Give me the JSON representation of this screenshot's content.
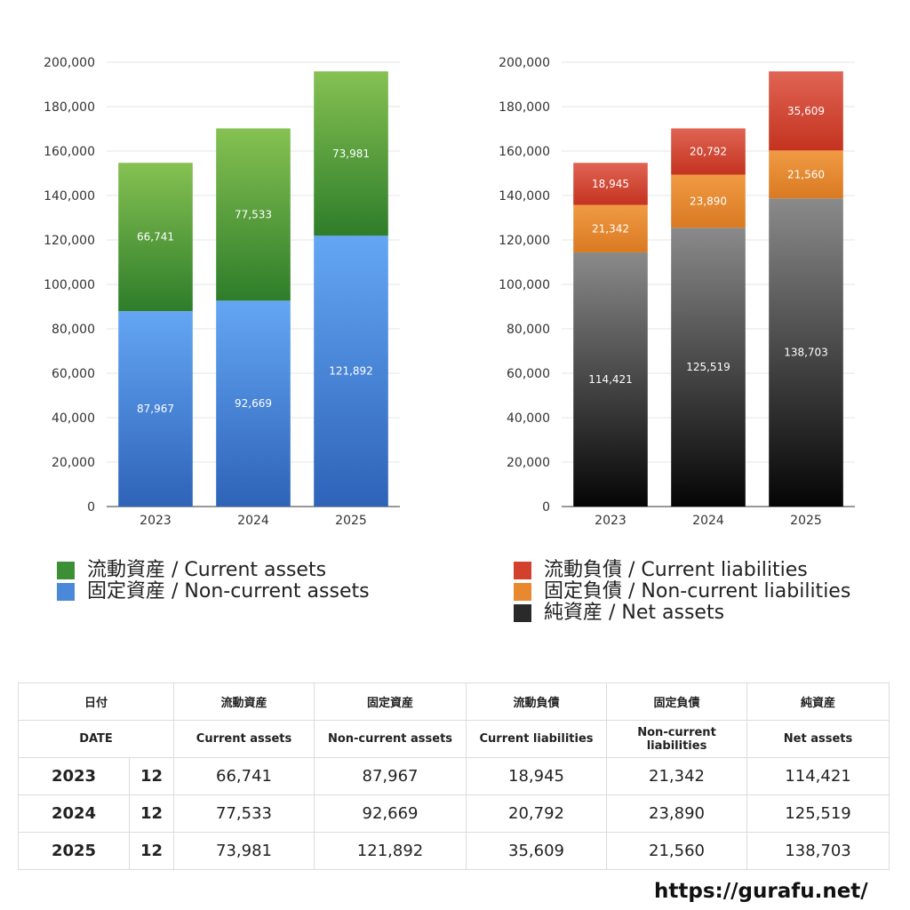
{
  "chart_data": [
    {
      "type": "bar",
      "stacked": true,
      "categories": [
        "2023",
        "2024",
        "2025"
      ],
      "ylim": [
        0,
        200000
      ],
      "yticks": [
        "0",
        "20,000",
        "40,000",
        "60,000",
        "80,000",
        "100,000",
        "120,000",
        "140,000",
        "160,000",
        "180,000",
        "200,000"
      ],
      "grid": true,
      "legend_position": "bottom",
      "series": [
        {
          "name": "固定資産 / Non-current assets",
          "values": [
            87967,
            92669,
            121892
          ],
          "labels": [
            "87,967",
            "92,669",
            "121,892"
          ],
          "color_top": "#64A6F4",
          "color_bottom": "#2E63B8"
        },
        {
          "name": "流動資産 / Current assets",
          "values": [
            66741,
            77533,
            73981
          ],
          "labels": [
            "66,741",
            "77,533",
            "73,981"
          ],
          "color_top": "#86C152",
          "color_bottom": "#2E7D2A"
        }
      ]
    },
    {
      "type": "bar",
      "stacked": true,
      "categories": [
        "2023",
        "2024",
        "2025"
      ],
      "ylim": [
        0,
        200000
      ],
      "yticks": [
        "0",
        "20,000",
        "40,000",
        "60,000",
        "80,000",
        "100,000",
        "120,000",
        "140,000",
        "160,000",
        "180,000",
        "200,000"
      ],
      "grid": true,
      "legend_position": "bottom",
      "series": [
        {
          "name": "純資産 / Net assets",
          "values": [
            114421,
            125519,
            138703
          ],
          "labels": [
            "114,421",
            "125,519",
            "138,703"
          ],
          "color_top": "#8A8A8A",
          "color_bottom": "#050505"
        },
        {
          "name": "固定負債 / Non-current liabilities",
          "values": [
            21342,
            23890,
            21560
          ],
          "labels": [
            "21,342",
            "23,890",
            "21,560"
          ],
          "color_top": "#F09A44",
          "color_bottom": "#D97A22"
        },
        {
          "name": "流動負債 / Current liabilities",
          "values": [
            18945,
            20792,
            35609
          ],
          "labels": [
            "18,945",
            "20,792",
            "35,609"
          ],
          "color_top": "#E06454",
          "color_bottom": "#C4331F"
        }
      ]
    }
  ],
  "legend_assets": [
    {
      "label": "流動資産 / Current assets",
      "color": "#3C8F34"
    },
    {
      "label": "固定資産 / Non-current assets",
      "color": "#4A88DA"
    }
  ],
  "legend_liab": [
    {
      "label": "流動負債 / Current liabilities",
      "color": "#D2402E"
    },
    {
      "label": "固定負債 / Non-current liabilities",
      "color": "#E8892F"
    },
    {
      "label": "純資産 / Net assets",
      "color": "#2A2A2A"
    }
  ],
  "table": {
    "header_jp": {
      "date": "日付",
      "cols": [
        "流動資産",
        "固定資産",
        "流動負債",
        "固定負債",
        "純資産"
      ]
    },
    "header_en": {
      "date": "DATE",
      "cols": [
        "Current assets",
        "Non-current assets",
        "Current liabilities",
        "Non-current liabilities",
        "Net assets"
      ]
    },
    "rows": [
      {
        "year": "2023",
        "month": "12",
        "values": [
          "66,741",
          "87,967",
          "18,945",
          "21,342",
          "114,421"
        ]
      },
      {
        "year": "2024",
        "month": "12",
        "values": [
          "77,533",
          "92,669",
          "20,792",
          "23,890",
          "125,519"
        ]
      },
      {
        "year": "2025",
        "month": "12",
        "values": [
          "73,981",
          "121,892",
          "35,609",
          "21,560",
          "138,703"
        ]
      }
    ]
  },
  "site_url": "https://gurafu.net/"
}
